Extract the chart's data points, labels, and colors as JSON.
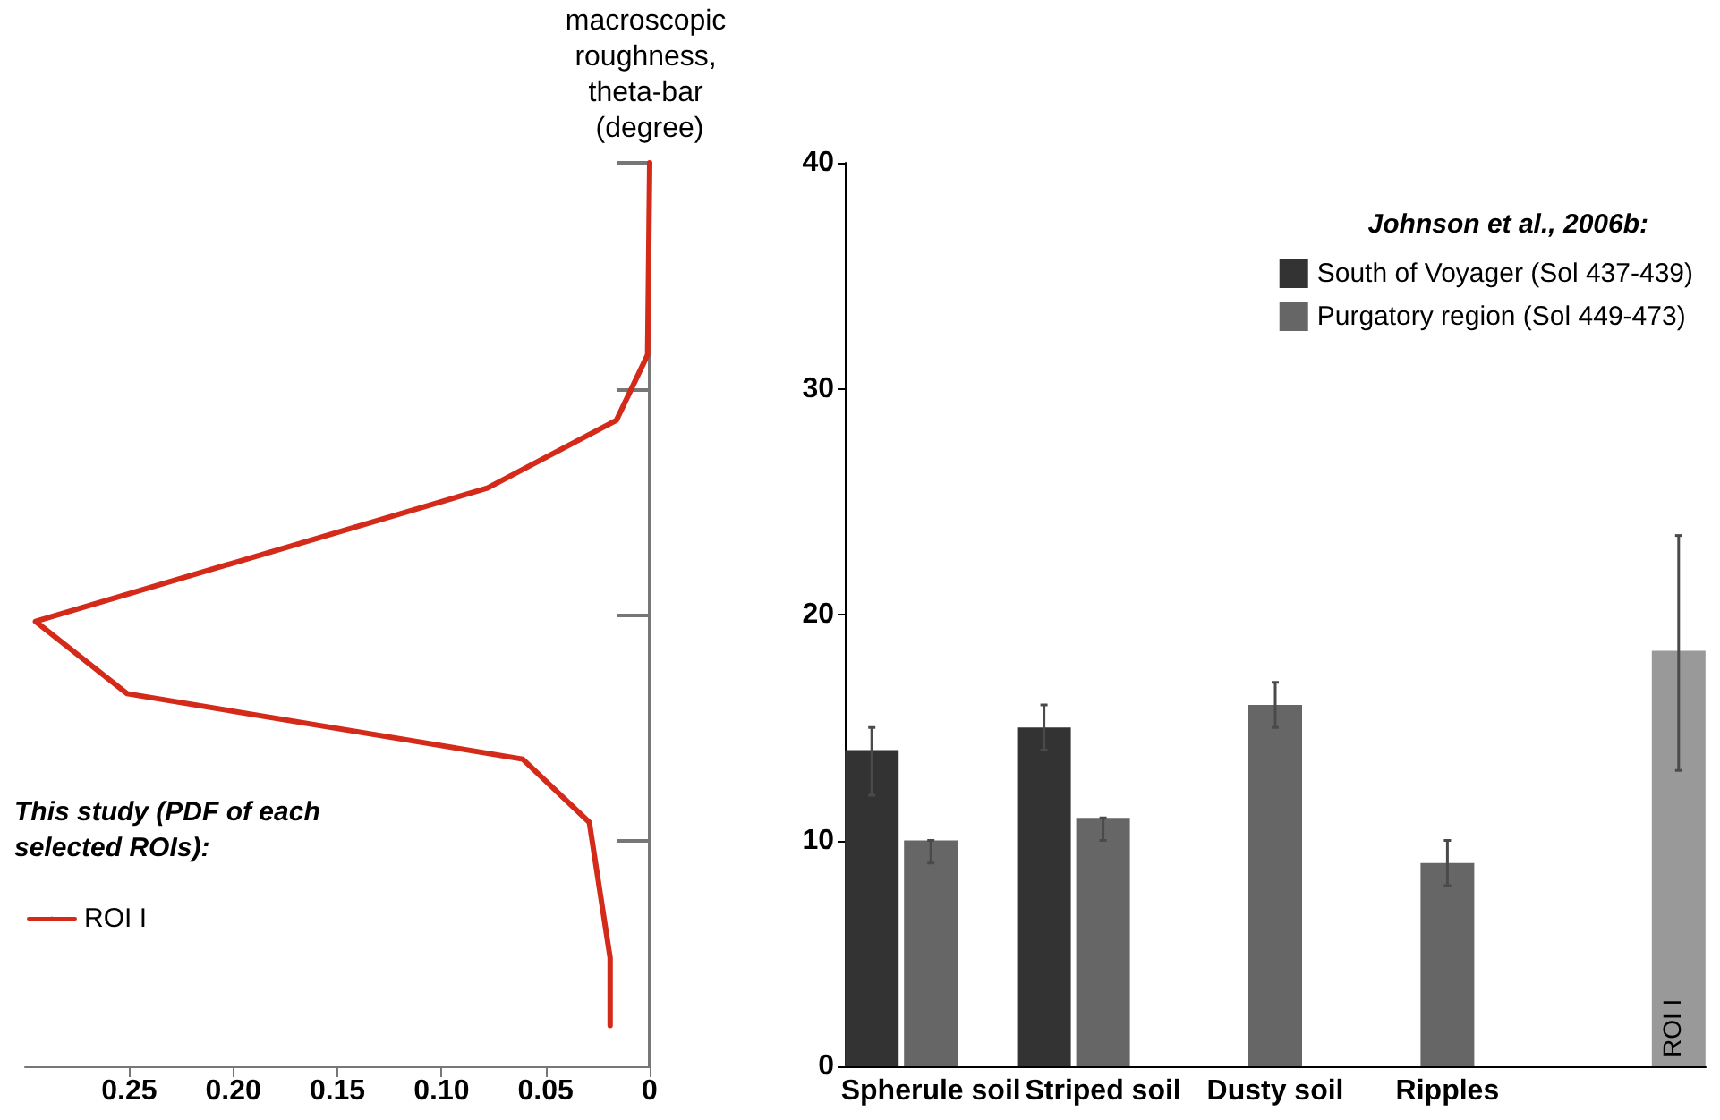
{
  "chart_data": [
    {
      "type": "line",
      "ylabel": "macroscopic roughness, theta-bar (degree)",
      "legend_title": "This study (PDF of each selected ROIs):",
      "legend": "bottom left",
      "tick_labels": "x",
      "series": [
        {
          "name": "ROI I",
          "color": "#d42a1a",
          "x": [
            0.019,
            0.019,
            0.029,
            0.061,
            0.251,
            0.295,
            0.078,
            0.016,
            0.001,
            0
          ],
          "values": [
            1.8,
            4.8,
            10.8,
            13.6,
            16.5,
            19.7,
            25.6,
            28.6,
            31.5,
            40
          ]
        }
      ],
      "xlim": [
        0.3,
        0
      ],
      "xticks": [
        {
          "value": 0.25,
          "label": "0.25"
        },
        {
          "value": 0.2,
          "label": "0.20"
        },
        {
          "value": 0.15,
          "label": "0.15"
        },
        {
          "value": 0.1,
          "label": "0.10"
        },
        {
          "value": 0.05,
          "label": "0.05"
        },
        0
      ],
      "ylim": [
        0,
        40
      ],
      "yticks": [
        {
          "value": 10,
          "label": null
        },
        {
          "value": 20,
          "label": null
        },
        {
          "value": 30,
          "label": null
        },
        {
          "value": 40,
          "label": null
        }
      ]
    },
    {
      "type": "bar",
      "categories": [
        "Spherule soil",
        "Striped soil",
        "Dusty soil",
        "Ripples",
        null
      ],
      "legend_title": "Johnson et al., 2006b:",
      "legend": "top right",
      "series": [
        {
          "name": "South of Voyager (Sol 437-439)",
          "color": "#333333",
          "values": [
            14,
            15,
            null,
            null,
            null
          ],
          "errors": [
            [
              12,
              15
            ],
            [
              14,
              16
            ],
            null,
            null,
            null
          ]
        },
        {
          "name": "Purgatory region (Sol 449-473)",
          "color": "#666666",
          "values": [
            10,
            11,
            16,
            9,
            null
          ],
          "errors": [
            [
              9,
              10
            ],
            [
              10,
              11
            ],
            [
              15,
              17
            ],
            [
              8,
              10
            ],
            null
          ]
        },
        {
          "name": "ROI I",
          "color": "#999999",
          "values": [
            null,
            null,
            null,
            null,
            18.4
          ],
          "errors": [
            null,
            null,
            null,
            null,
            [
              13.1,
              23.5
            ]
          ]
        }
      ],
      "ylim": [
        0,
        40
      ],
      "yticks": [
        0,
        10,
        20,
        30,
        40
      ]
    }
  ]
}
